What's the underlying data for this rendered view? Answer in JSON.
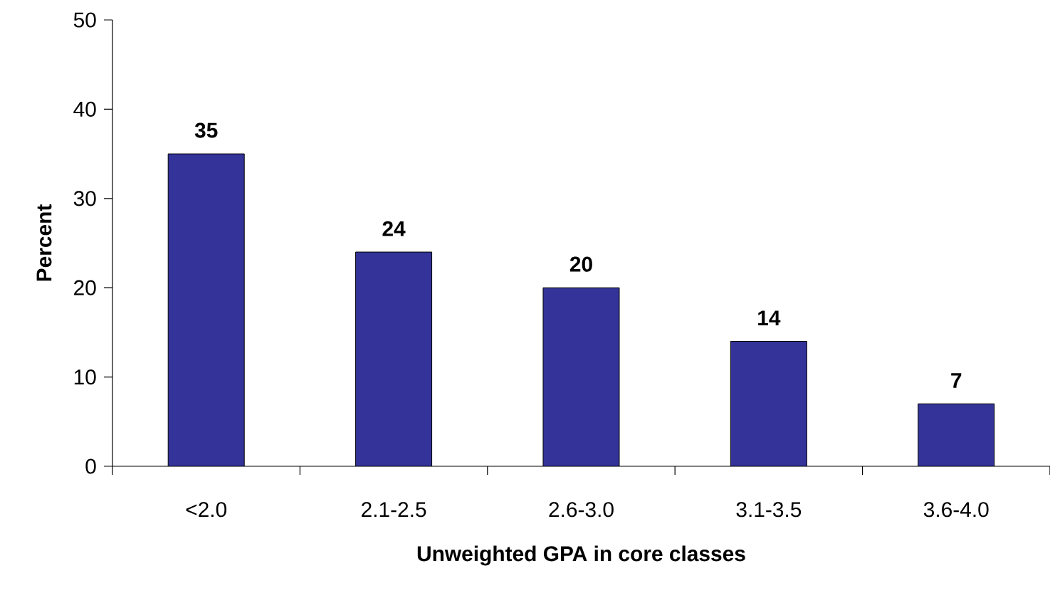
{
  "chart_data": {
    "type": "bar",
    "xlabel": "Unweighted GPA in core classes",
    "ylabel": "Percent",
    "categories": [
      "<2.0",
      "2.1-2.5",
      "2.6-3.0",
      "3.1-3.5",
      "3.6-4.0"
    ],
    "values": [
      35,
      24,
      20,
      14,
      7
    ],
    "color": "#333399",
    "ylim": [
      0,
      50
    ],
    "yticks": [
      0,
      10,
      20,
      30,
      40,
      50
    ],
    "data_labels": true
  }
}
